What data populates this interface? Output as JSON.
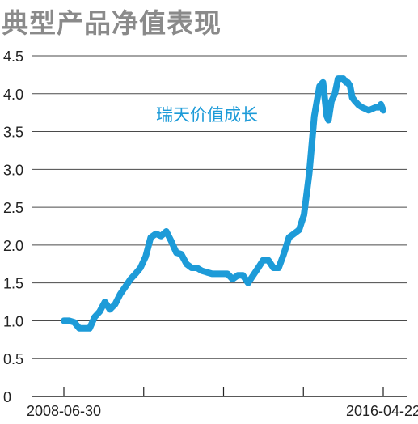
{
  "chart_data": {
    "type": "line",
    "title": "典型产品净值表现",
    "ylim": [
      0,
      4.5
    ],
    "yticks": [
      "0",
      "0.5",
      "1.0",
      "1.5",
      "2.0",
      "2.5",
      "3.0",
      "3.5",
      "4.0",
      "4.5"
    ],
    "xtick_labels": [
      "2008-06-30",
      "2016-04-22"
    ],
    "grid": "horizontal",
    "series": [
      {
        "name": "瑞天价值成长",
        "color": "#1d9bd8",
        "x": [
          "2008-06-30",
          "2008-08-15",
          "2008-10-01",
          "2008-11-15",
          "2009-01-01",
          "2009-02-15",
          "2009-04-01",
          "2009-05-15",
          "2009-07-01",
          "2009-08-15",
          "2009-10-01",
          "2009-11-15",
          "2010-01-01",
          "2010-02-15",
          "2010-04-01",
          "2010-05-15",
          "2010-07-01",
          "2010-08-15",
          "2010-10-01",
          "2010-11-15",
          "2011-01-01",
          "2011-02-15",
          "2011-04-01",
          "2011-05-15",
          "2011-07-01",
          "2011-08-15",
          "2011-10-01",
          "2011-11-15",
          "2012-01-01",
          "2012-02-15",
          "2012-04-01",
          "2012-05-15",
          "2012-07-01",
          "2012-08-15",
          "2012-10-01",
          "2012-11-15",
          "2013-01-01",
          "2013-02-15",
          "2013-04-01",
          "2013-05-15",
          "2013-07-01",
          "2013-08-15",
          "2013-10-01",
          "2013-11-15",
          "2014-01-01",
          "2014-02-15",
          "2014-04-01",
          "2014-05-15",
          "2014-07-01",
          "2014-08-15",
          "2014-10-01",
          "2014-11-01",
          "2014-11-20",
          "2014-12-05",
          "2014-12-20",
          "2015-01-15",
          "2015-02-15",
          "2015-03-15",
          "2015-04-10",
          "2015-05-01",
          "2015-05-25",
          "2015-06-10",
          "2015-07-01",
          "2015-07-20",
          "2015-08-15",
          "2015-09-15",
          "2015-10-15",
          "2015-11-15",
          "2015-12-15",
          "2016-01-15",
          "2016-02-15",
          "2016-03-15",
          "2016-04-01",
          "2016-04-22"
        ],
        "values": [
          1.0,
          1.0,
          0.98,
          0.9,
          0.9,
          0.9,
          1.05,
          1.12,
          1.25,
          1.15,
          1.22,
          1.35,
          1.45,
          1.55,
          1.62,
          1.7,
          1.85,
          2.1,
          2.15,
          2.12,
          2.18,
          2.05,
          1.9,
          1.88,
          1.75,
          1.7,
          1.7,
          1.66,
          1.64,
          1.62,
          1.62,
          1.62,
          1.62,
          1.55,
          1.6,
          1.6,
          1.5,
          1.6,
          1.7,
          1.8,
          1.8,
          1.7,
          1.7,
          1.88,
          2.1,
          2.15,
          2.2,
          2.4,
          2.95,
          3.7,
          4.1,
          4.15,
          3.9,
          3.7,
          3.65,
          3.9,
          4.0,
          4.2,
          4.2,
          4.2,
          4.15,
          4.15,
          4.1,
          3.95,
          3.9,
          3.85,
          3.82,
          3.8,
          3.78,
          3.8,
          3.82,
          3.82,
          3.86,
          3.78
        ]
      }
    ]
  }
}
